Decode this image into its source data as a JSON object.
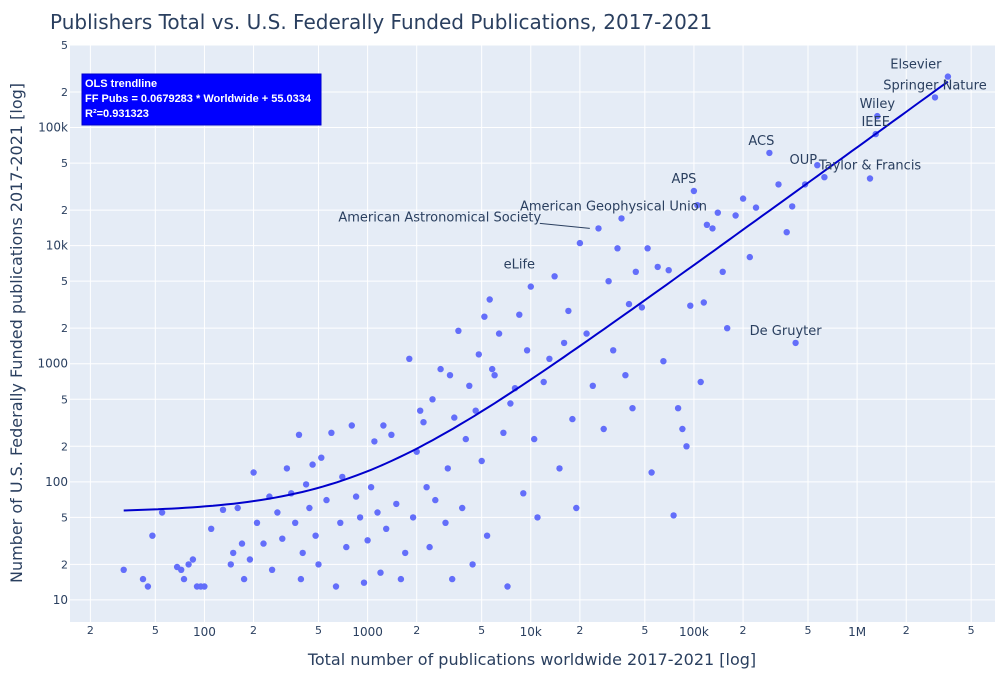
{
  "chart_data": {
    "type": "scatter",
    "title": "Publishers Total vs. U.S. Federally Funded Publications, 2017-2021",
    "xlabel": "Total number of publications worldwide 2017-2021 [log]",
    "ylabel": "Number of U.S. Federally Funded publications 2017-2021 [log]",
    "x_scale": "log",
    "y_scale": "log",
    "xlim": [
      15,
      7000000
    ],
    "ylim": [
      6.5,
      500000
    ],
    "grid": true,
    "x_ticks": [
      {
        "v": 20,
        "t": "2"
      },
      {
        "v": 50,
        "t": "5"
      },
      {
        "v": 100,
        "t": "100"
      },
      {
        "v": 200,
        "t": "2"
      },
      {
        "v": 500,
        "t": "5"
      },
      {
        "v": 1000,
        "t": "1000"
      },
      {
        "v": 2000,
        "t": "2"
      },
      {
        "v": 5000,
        "t": "5"
      },
      {
        "v": 10000,
        "t": "10k"
      },
      {
        "v": 20000,
        "t": "2"
      },
      {
        "v": 50000,
        "t": "5"
      },
      {
        "v": 100000,
        "t": "100k"
      },
      {
        "v": 200000,
        "t": "2"
      },
      {
        "v": 500000,
        "t": "5"
      },
      {
        "v": 1000000,
        "t": "1M"
      },
      {
        "v": 2000000,
        "t": "2"
      },
      {
        "v": 5000000,
        "t": "5"
      }
    ],
    "y_ticks": [
      {
        "v": 10,
        "t": "10"
      },
      {
        "v": 20,
        "t": "2"
      },
      {
        "v": 50,
        "t": "5"
      },
      {
        "v": 100,
        "t": "100"
      },
      {
        "v": 200,
        "t": "2"
      },
      {
        "v": 500,
        "t": "5"
      },
      {
        "v": 1000,
        "t": "1000"
      },
      {
        "v": 2000,
        "t": "2"
      },
      {
        "v": 5000,
        "t": "5"
      },
      {
        "v": 10000,
        "t": "10k"
      },
      {
        "v": 20000,
        "t": "2"
      },
      {
        "v": 50000,
        "t": "5"
      },
      {
        "v": 100000,
        "t": "100k"
      },
      {
        "v": 200000,
        "t": "2"
      },
      {
        "v": 500000,
        "t": "5"
      }
    ],
    "trendline": {
      "slope": 0.0679283,
      "intercept": 55.0334,
      "label_lines": [
        "OLS trendline",
        "FF Pubs = 0.0679283 * Worldwide + 55.0334",
        "R²=0.931323"
      ],
      "color": "#0000cc"
    },
    "marker_color": "#636efa",
    "background": "#e5ecf6",
    "annotated_points": [
      {
        "label": "Elsevier",
        "x": 3600000,
        "y": 270000
      },
      {
        "label": "Springer Nature",
        "x": 3000000,
        "y": 180000
      },
      {
        "label": "Wiley",
        "x": 1330000,
        "y": 125000
      },
      {
        "label": "IEEE",
        "x": 1300000,
        "y": 88000
      },
      {
        "label": "ACS",
        "x": 290000,
        "y": 61000
      },
      {
        "label": "OUP",
        "x": 570000,
        "y": 48000
      },
      {
        "label": "Taylor & Francis",
        "x": 1200000,
        "y": 37000
      },
      {
        "label": "APS",
        "x": 100000,
        "y": 29000
      },
      {
        "label": "American Geophysical Union",
        "x": 37000,
        "y": 17000
      },
      {
        "label": "American Astronomical Society",
        "x": 23000,
        "y": 14000
      },
      {
        "label": "eLife",
        "x": 9800,
        "y": 5500
      },
      {
        "label": "De Gruyter",
        "x": 420000,
        "y": 1500
      }
    ],
    "points": [
      [
        32,
        18
      ],
      [
        42,
        15
      ],
      [
        45,
        13
      ],
      [
        48,
        35
      ],
      [
        55,
        55
      ],
      [
        68,
        19
      ],
      [
        72,
        18
      ],
      [
        75,
        15
      ],
      [
        80,
        20
      ],
      [
        85,
        22
      ],
      [
        90,
        13
      ],
      [
        95,
        13
      ],
      [
        100,
        13
      ],
      [
        110,
        40
      ],
      [
        130,
        58
      ],
      [
        145,
        20
      ],
      [
        150,
        25
      ],
      [
        160,
        60
      ],
      [
        170,
        30
      ],
      [
        175,
        15
      ],
      [
        190,
        22
      ],
      [
        200,
        120
      ],
      [
        210,
        45
      ],
      [
        230,
        30
      ],
      [
        250,
        75
      ],
      [
        260,
        18
      ],
      [
        280,
        55
      ],
      [
        300,
        33
      ],
      [
        320,
        130
      ],
      [
        340,
        80
      ],
      [
        360,
        45
      ],
      [
        380,
        250
      ],
      [
        390,
        15
      ],
      [
        400,
        25
      ],
      [
        420,
        95
      ],
      [
        440,
        60
      ],
      [
        460,
        140
      ],
      [
        480,
        35
      ],
      [
        500,
        20
      ],
      [
        520,
        160
      ],
      [
        560,
        70
      ],
      [
        600,
        260
      ],
      [
        640,
        13
      ],
      [
        680,
        45
      ],
      [
        700,
        110
      ],
      [
        740,
        28
      ],
      [
        800,
        300
      ],
      [
        850,
        75
      ],
      [
        900,
        50
      ],
      [
        950,
        14
      ],
      [
        1000,
        32
      ],
      [
        1050,
        90
      ],
      [
        1100,
        220
      ],
      [
        1150,
        55
      ],
      [
        1200,
        17
      ],
      [
        1250,
        300
      ],
      [
        1300,
        40
      ],
      [
        1400,
        250
      ],
      [
        1500,
        65
      ],
      [
        1600,
        15
      ],
      [
        1700,
        25
      ],
      [
        1800,
        1100
      ],
      [
        1900,
        50
      ],
      [
        2000,
        180
      ],
      [
        2100,
        400
      ],
      [
        2200,
        320
      ],
      [
        2300,
        90
      ],
      [
        2400,
        28
      ],
      [
        2500,
        500
      ],
      [
        2600,
        70
      ],
      [
        2800,
        900
      ],
      [
        3000,
        45
      ],
      [
        3100,
        130
      ],
      [
        3200,
        800
      ],
      [
        3300,
        15
      ],
      [
        3400,
        350
      ],
      [
        3600,
        1900
      ],
      [
        3800,
        60
      ],
      [
        4000,
        230
      ],
      [
        4200,
        650
      ],
      [
        4400,
        20
      ],
      [
        4600,
        400
      ],
      [
        4800,
        1200
      ],
      [
        5000,
        150
      ],
      [
        5200,
        2500
      ],
      [
        5400,
        35
      ],
      [
        5600,
        3500
      ],
      [
        5800,
        900
      ],
      [
        6000,
        800
      ],
      [
        6400,
        1800
      ],
      [
        6800,
        260
      ],
      [
        7200,
        13
      ],
      [
        7500,
        460
      ],
      [
        8000,
        620
      ],
      [
        8500,
        2600
      ],
      [
        9000,
        80
      ],
      [
        9500,
        1300
      ],
      [
        10000,
        4500
      ],
      [
        10500,
        230
      ],
      [
        11000,
        50
      ],
      [
        12000,
        700
      ],
      [
        13000,
        1100
      ],
      [
        14000,
        5500
      ],
      [
        15000,
        130
      ],
      [
        16000,
        1500
      ],
      [
        17000,
        2800
      ],
      [
        18000,
        340
      ],
      [
        19000,
        60
      ],
      [
        20000,
        10500
      ],
      [
        22000,
        1800
      ],
      [
        24000,
        650
      ],
      [
        26000,
        14000
      ],
      [
        28000,
        280
      ],
      [
        30000,
        5000
      ],
      [
        32000,
        1300
      ],
      [
        34000,
        9500
      ],
      [
        36000,
        17000
      ],
      [
        38000,
        800
      ],
      [
        40000,
        3200
      ],
      [
        42000,
        420
      ],
      [
        44000,
        6000
      ],
      [
        48000,
        3000
      ],
      [
        52000,
        9500
      ],
      [
        55000,
        120
      ],
      [
        60000,
        6600
      ],
      [
        65000,
        1050
      ],
      [
        70000,
        6200
      ],
      [
        75000,
        52
      ],
      [
        80000,
        420
      ],
      [
        85000,
        280
      ],
      [
        90000,
        200
      ],
      [
        95000,
        3100
      ],
      [
        100000,
        29000
      ],
      [
        105000,
        22000
      ],
      [
        110000,
        700
      ],
      [
        115000,
        3300
      ],
      [
        120000,
        15000
      ],
      [
        130000,
        14000
      ],
      [
        140000,
        19000
      ],
      [
        150000,
        6000
      ],
      [
        160000,
        2000
      ],
      [
        180000,
        18000
      ],
      [
        200000,
        25000
      ],
      [
        220000,
        8000
      ],
      [
        240000,
        21000
      ],
      [
        290000,
        61000
      ],
      [
        330000,
        33000
      ],
      [
        370000,
        13000
      ],
      [
        400000,
        21500
      ],
      [
        420000,
        1500
      ],
      [
        480000,
        33000
      ],
      [
        570000,
        48000
      ],
      [
        630000,
        38000
      ],
      [
        1200000,
        37000
      ],
      [
        1300000,
        88000
      ],
      [
        1330000,
        125000
      ],
      [
        3000000,
        180000
      ],
      [
        3600000,
        270000
      ]
    ]
  }
}
